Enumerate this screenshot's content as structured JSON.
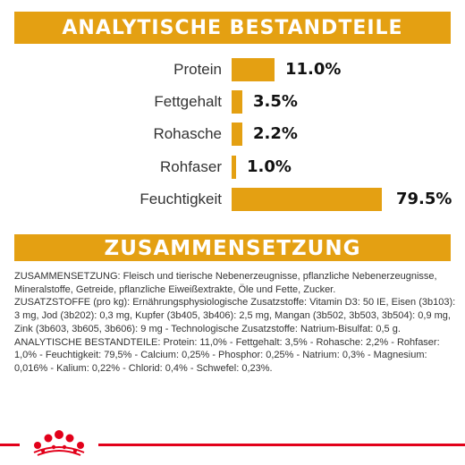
{
  "analytic": {
    "title": "ANALYTISCHE BESTANDTEILE",
    "rows": [
      {
        "label": "Protein",
        "value": "11.0%",
        "percent": 11.0
      },
      {
        "label": "Fettgehalt",
        "value": "3.5%",
        "percent": 3.5
      },
      {
        "label": "Rohasche",
        "value": "2.2%",
        "percent": 2.2
      },
      {
        "label": "Rohfaser",
        "value": "1.0%",
        "percent": 1.0
      },
      {
        "label": "Feuchtigkeit",
        "value": "79.5%",
        "percent": 79.5
      }
    ]
  },
  "composition": {
    "title": "ZUSAMMENSETZUNG",
    "paragraphs": [
      "ZUSAMMENSETZUNG: Fleisch und tierische Nebenerzeugnisse, pflanzliche Nebenerzeugnisse, Mineralstoffe, Getreide, pflanzliche Eiweißextrakte, Öle und Fette, Zucker.",
      "ZUSATZSTOFFE (pro kg): Ernährungsphysiologische Zusatzstoffe: Vitamin D3: 50 IE, Eisen (3b103): 3 mg, Jod (3b202): 0,3 mg, Kupfer (3b405, 3b406): 2,5 mg, Mangan (3b502, 3b503, 3b504): 0,9 mg, Zink (3b603, 3b605, 3b606): 9 mg - Technologische Zusatzstoffe: Natrium-Bisulfat: 0,5 g.",
      "ANALYTISCHE BESTANDTEILE: Protein: 11,0% - Fettgehalt: 3,5% - Rohasche: 2,2% - Rohfaser: 1,0% - Feuchtigkeit: 79,5% - Calcium: 0,25% - Phosphor: 0,25% - Natrium: 0,3% - Magnesium: 0,016% - Kalium: 0,22% - Chlorid: 0,4% - Schwefel: 0,23%."
    ]
  },
  "colors": {
    "accent": "#e4a012",
    "brand_red": "#e2001a"
  },
  "footer": {
    "logo_icon": "royal-canin-crown-logo-icon"
  }
}
